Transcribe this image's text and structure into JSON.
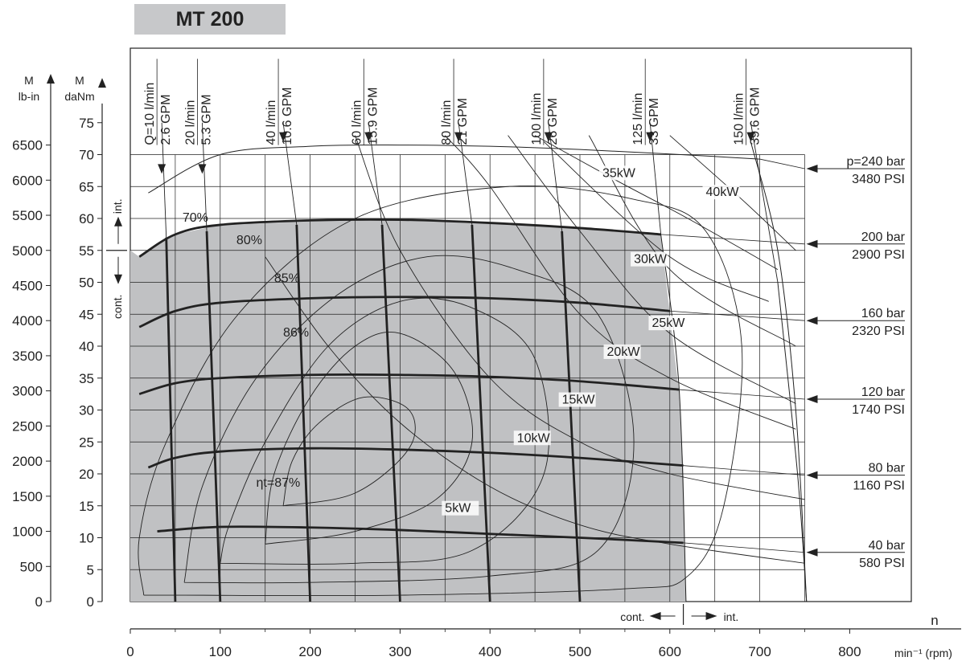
{
  "title": "MT 200",
  "chart_data": {
    "type": "line",
    "title": "MT 200",
    "x_axis": {
      "label_symbol": "n",
      "unit_label": "min⁻¹ (rpm)",
      "range": [
        0,
        850
      ],
      "ticks": [
        0,
        100,
        200,
        300,
        400,
        500,
        600,
        700,
        800
      ]
    },
    "y_axis_left_outer": {
      "symbol": "M",
      "unit": "lb-in",
      "range": [
        0,
        7000
      ],
      "ticks": [
        0,
        500,
        1000,
        1500,
        2000,
        2500,
        3000,
        3500,
        4000,
        4500,
        5000,
        5500,
        6000,
        6500
      ]
    },
    "y_axis_left_inner": {
      "symbol": "M",
      "unit": "daNm",
      "range": [
        0,
        75
      ],
      "ticks": [
        0,
        5,
        10,
        15,
        20,
        25,
        30,
        35,
        40,
        45,
        50,
        55,
        60,
        65,
        70,
        75
      ]
    },
    "grid": true,
    "continuous_region": {
      "label_torque_cont": "cont.",
      "label_torque_int": "int.",
      "label_speed_cont": "cont.",
      "label_speed_int": "int.",
      "torque_limit": 55,
      "speed_limit": 615
    },
    "pressure_curves": [
      {
        "bar": "p=240 bar",
        "psi": "3480 PSI",
        "points": [
          [
            20,
            64
          ],
          [
            100,
            70
          ],
          [
            200,
            71.3
          ],
          [
            300,
            71.5
          ],
          [
            400,
            71.3
          ],
          [
            500,
            70.8
          ],
          [
            600,
            70.1
          ],
          [
            700,
            69.3
          ]
        ]
      },
      {
        "bar": "200 bar",
        "psi": "2900 PSI",
        "points": [
          [
            10,
            54
          ],
          [
            50,
            57.5
          ],
          [
            100,
            59
          ],
          [
            200,
            59.7
          ],
          [
            300,
            59.8
          ],
          [
            400,
            59.3
          ],
          [
            500,
            58.5
          ],
          [
            590,
            57.5
          ]
        ]
      },
      {
        "bar": "160 bar",
        "psi": "2320 PSI",
        "points": [
          [
            10,
            43
          ],
          [
            50,
            45.5
          ],
          [
            100,
            46.8
          ],
          [
            200,
            47.5
          ],
          [
            300,
            47.7
          ],
          [
            400,
            47.5
          ],
          [
            500,
            46.8
          ],
          [
            600,
            45.5
          ]
        ]
      },
      {
        "bar": "120 bar",
        "psi": "1740 PSI",
        "points": [
          [
            10,
            32.5
          ],
          [
            50,
            34.2
          ],
          [
            100,
            35
          ],
          [
            200,
            35.5
          ],
          [
            300,
            35.5
          ],
          [
            400,
            35.2
          ],
          [
            500,
            34.5
          ],
          [
            610,
            33.2
          ]
        ]
      },
      {
        "bar": "80 bar",
        "psi": "1160 PSI",
        "points": [
          [
            20,
            21
          ],
          [
            50,
            22.5
          ],
          [
            100,
            23.5
          ],
          [
            200,
            24
          ],
          [
            300,
            23.8
          ],
          [
            400,
            23.3
          ],
          [
            500,
            22.5
          ],
          [
            615,
            21.3
          ]
        ]
      },
      {
        "bar": "40 bar",
        "psi": "580 PSI",
        "points": [
          [
            30,
            11
          ],
          [
            100,
            11.7
          ],
          [
            200,
            11.6
          ],
          [
            300,
            11.2
          ],
          [
            400,
            10.6
          ],
          [
            500,
            10
          ],
          [
            615,
            9.2
          ]
        ]
      }
    ],
    "flow_lines": [
      {
        "lpm": "Q=10 l/min",
        "gpm": "2.6 GPM",
        "points": [
          [
            35,
            67
          ],
          [
            40,
            57
          ],
          [
            50,
            0
          ]
        ]
      },
      {
        "lpm": "20 l/min",
        "gpm": "5.3 GPM",
        "points": [
          [
            80,
            67
          ],
          [
            85,
            58
          ],
          [
            100,
            0
          ]
        ]
      },
      {
        "lpm": "40 l/min",
        "gpm": "10.6 GPM",
        "points": [
          [
            170,
            72
          ],
          [
            185,
            59
          ],
          [
            200,
            0
          ]
        ]
      },
      {
        "lpm": "60 l/min",
        "gpm": "15.9 GPM",
        "points": [
          [
            265,
            72
          ],
          [
            280,
            59
          ],
          [
            300,
            0
          ]
        ]
      },
      {
        "lpm": "80 l/min",
        "gpm": "21 GPM",
        "points": [
          [
            365,
            72
          ],
          [
            380,
            59
          ],
          [
            400,
            0
          ]
        ]
      },
      {
        "lpm": "100 l/min",
        "gpm": "26 GPM",
        "points": [
          [
            465,
            72
          ],
          [
            480,
            58
          ],
          [
            500,
            0
          ]
        ]
      },
      {
        "lpm": "125 l/min",
        "gpm": "33 GPM",
        "points": [
          [
            578,
            72
          ],
          [
            590,
            57.5
          ],
          [
            610,
            34
          ],
          [
            618,
            0
          ]
        ]
      },
      {
        "lpm": "150 l/min",
        "gpm": "39.6 GPM",
        "points": [
          [
            690,
            72
          ],
          [
            720,
            50
          ],
          [
            742,
            20
          ],
          [
            752,
            0
          ]
        ]
      }
    ],
    "power_curves": [
      {
        "label": "5kW",
        "label_at": [
          350,
          14
        ],
        "points": [
          [
            150,
            54
          ],
          [
            220,
            40
          ],
          [
            300,
            28
          ],
          [
            400,
            18
          ],
          [
            500,
            12
          ],
          [
            600,
            9
          ],
          [
            750,
            6
          ]
        ]
      },
      {
        "label": "10kW",
        "label_at": [
          430,
          25
        ],
        "points": [
          [
            250,
            73
          ],
          [
            300,
            55
          ],
          [
            400,
            35
          ],
          [
            500,
            25
          ],
          [
            600,
            20
          ],
          [
            750,
            16
          ]
        ]
      },
      {
        "label": "15kW",
        "label_at": [
          480,
          31
        ],
        "points": [
          [
            350,
            73
          ],
          [
            400,
            65
          ],
          [
            500,
            45
          ],
          [
            600,
            35
          ],
          [
            740,
            27
          ]
        ]
      },
      {
        "label": "20kW",
        "label_at": [
          530,
          38.5
        ],
        "points": [
          [
            420,
            73
          ],
          [
            500,
            58
          ],
          [
            600,
            42
          ],
          [
            740,
            31
          ]
        ]
      },
      {
        "label": "25kW",
        "label_at": [
          580,
          43
        ],
        "points": [
          [
            510,
            73
          ],
          [
            600,
            52
          ],
          [
            740,
            40
          ]
        ]
      },
      {
        "label": "30kW",
        "label_at": [
          560,
          53
        ],
        "points": [
          [
            460,
            72
          ],
          [
            600,
            54
          ],
          [
            710,
            47
          ]
        ]
      },
      {
        "label": "35kW",
        "label_at": [
          525,
          66.5
        ],
        "points": [
          [
            450,
            73
          ],
          [
            540,
            66
          ],
          [
            620,
            60
          ],
          [
            720,
            52
          ]
        ]
      },
      {
        "label": "40kW",
        "label_at": [
          640,
          63.5
        ],
        "points": [
          [
            600,
            73
          ],
          [
            680,
            63
          ],
          [
            740,
            55
          ]
        ]
      }
    ],
    "efficiency_curves": [
      {
        "label": "70%",
        "label_at": [
          58,
          59.5
        ]
      },
      {
        "label": "80%",
        "label_at": [
          118,
          56
        ]
      },
      {
        "label": "85%",
        "label_at": [
          160,
          50
        ]
      },
      {
        "label": "86%",
        "label_at": [
          170,
          41.5
        ]
      },
      {
        "label": "ηt=87%",
        "label_at": [
          140,
          18
        ]
      }
    ]
  }
}
